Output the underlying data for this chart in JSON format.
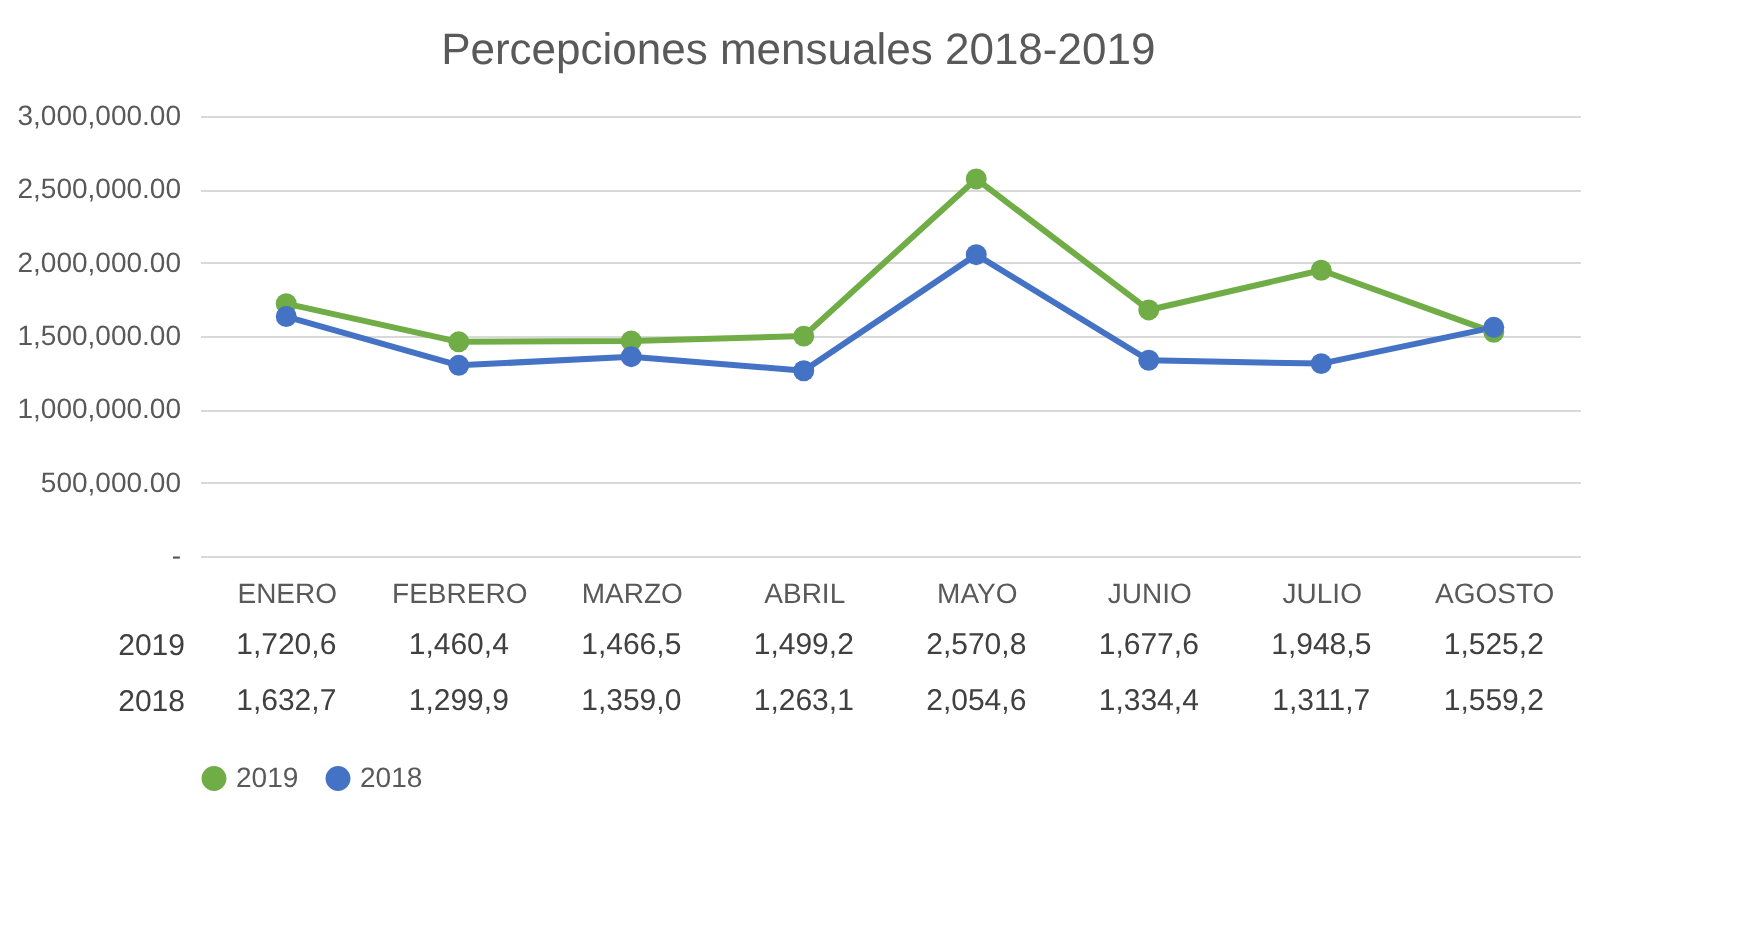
{
  "chart_data": {
    "type": "line",
    "title": "Percepciones mensuales 2018-2019",
    "categories": [
      "ENERO",
      "FEBRERO",
      "MARZO",
      "ABRIL",
      "MAYO",
      "JUNIO",
      "JULIO",
      "AGOSTO"
    ],
    "series": [
      {
        "name": "2019",
        "color": "#70ad47",
        "values": [
          1720600,
          1460400,
          1466500,
          1499200,
          2570800,
          1677600,
          1948500,
          1525200
        ],
        "value_labels": [
          "1,720,6",
          "1,460,4",
          "1,466,5",
          "1,499,2",
          "2,570,8",
          "1,677,6",
          "1,948,5",
          "1,525,2"
        ]
      },
      {
        "name": "2018",
        "color": "#4472c4",
        "values": [
          1632700,
          1299900,
          1359000,
          1263100,
          2054600,
          1334400,
          1311700,
          1559200
        ],
        "value_labels": [
          "1,632,7",
          "1,299,9",
          "1,359,0",
          "1,263,1",
          "2,054,6",
          "1,334,4",
          "1,311,7",
          "1,559,2"
        ]
      }
    ],
    "ylim": [
      0,
      3000000
    ],
    "yticks": [
      {
        "value": 0,
        "label": "-"
      },
      {
        "value": 500000,
        "label": "500,000.00"
      },
      {
        "value": 1000000,
        "label": "1,000,000.00"
      },
      {
        "value": 1500000,
        "label": "1,500,000.00"
      },
      {
        "value": 2000000,
        "label": "2,000,000.00"
      },
      {
        "value": 2500000,
        "label": "2,500,000.00"
      },
      {
        "value": 3000000,
        "label": "3,000,000.00"
      }
    ],
    "grid": "y",
    "legend": "bottom",
    "marker": "circle",
    "line_style": "solid"
  }
}
